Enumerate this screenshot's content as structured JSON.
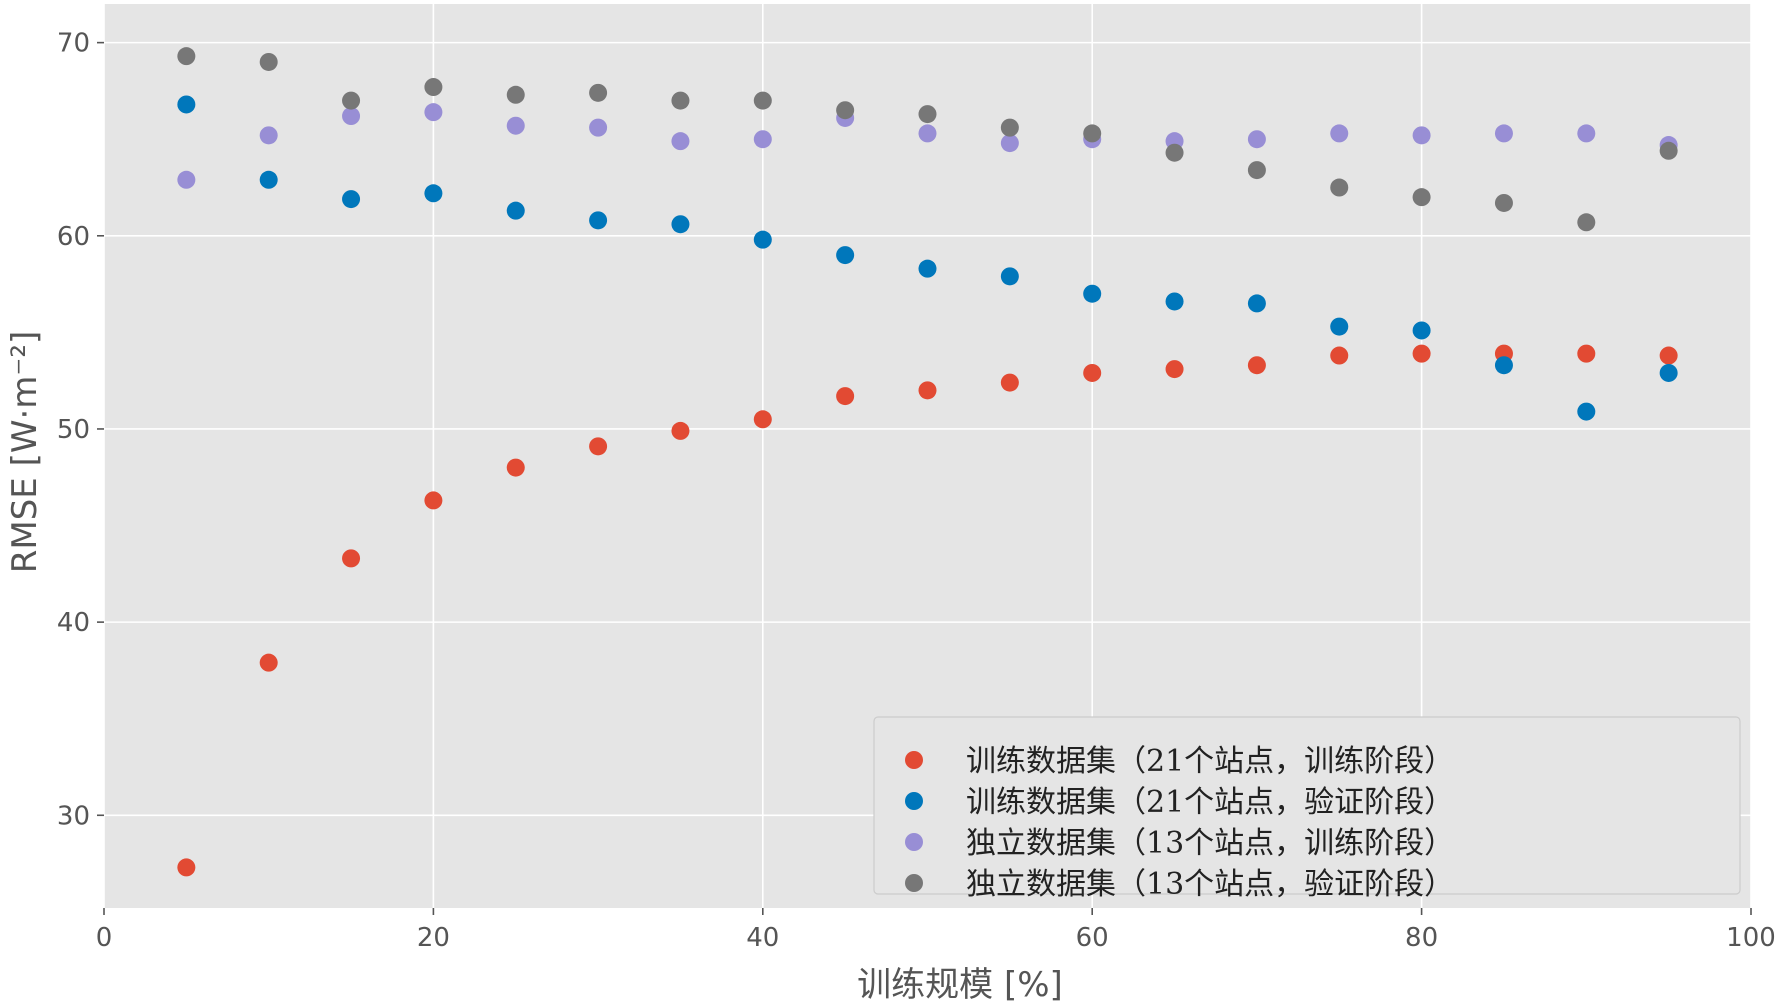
{
  "chart_data": {
    "type": "scatter",
    "title": "",
    "xlabel": "训练规模 [%]",
    "ylabel": "RMSE [W·m⁻²]",
    "xlim": [
      0,
      100
    ],
    "ylim": [
      25.2,
      72
    ],
    "xticks": [
      0,
      20,
      40,
      60,
      80,
      100
    ],
    "yticks": [
      30,
      40,
      50,
      60,
      70
    ],
    "grid": true,
    "legend_position": "bottom-right",
    "x": [
      5,
      10,
      15,
      20,
      25,
      30,
      35,
      40,
      45,
      50,
      55,
      60,
      65,
      70,
      75,
      80,
      85,
      90,
      95
    ],
    "series": [
      {
        "name": "训练数据集（21个站点，训练阶段）",
        "color": "#E24A33",
        "values": [
          27.3,
          37.9,
          43.3,
          46.3,
          48.0,
          49.1,
          49.9,
          50.5,
          51.7,
          52.0,
          52.4,
          52.9,
          53.1,
          53.3,
          53.8,
          53.9,
          53.9,
          53.9,
          53.8
        ]
      },
      {
        "name": "训练数据集（21个站点，验证阶段）",
        "color": "#0077BB",
        "values": [
          66.8,
          62.9,
          61.9,
          62.2,
          61.3,
          60.8,
          60.6,
          59.8,
          59.0,
          58.3,
          57.9,
          57.0,
          56.6,
          56.5,
          55.3,
          55.1,
          53.3,
          50.9,
          52.9
        ]
      },
      {
        "name": "独立数据集（13个站点，训练阶段）",
        "color": "#988ED5",
        "values": [
          62.9,
          65.2,
          66.2,
          66.4,
          65.7,
          65.6,
          64.9,
          65.0,
          66.1,
          65.3,
          64.8,
          65.0,
          64.9,
          65.0,
          65.3,
          65.2,
          65.3,
          65.3,
          64.7
        ]
      },
      {
        "name": "独立数据集（13个站点，验证阶段）",
        "color": "#777777",
        "values": [
          69.3,
          69.0,
          67.0,
          67.7,
          67.3,
          67.4,
          67.0,
          67.0,
          66.5,
          66.3,
          65.6,
          65.3,
          64.3,
          63.4,
          62.5,
          62.0,
          61.7,
          60.7,
          64.4
        ]
      }
    ]
  }
}
